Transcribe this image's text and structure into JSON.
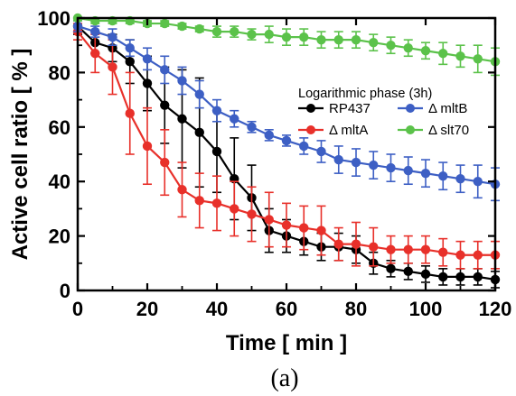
{
  "chart_data": {
    "type": "line",
    "title": "",
    "caption": "(a)",
    "xlabel": "Time [ min ]",
    "ylabel": "Active cell ratio [ % ]",
    "xlim": [
      0,
      120
    ],
    "ylim": [
      0,
      100
    ],
    "xticks": [
      "0",
      "20",
      "40",
      "60",
      "80",
      "100",
      "120"
    ],
    "yticks": [
      "0",
      "20",
      "40",
      "60",
      "80",
      "100"
    ],
    "grid": false,
    "legend_title": "Logarithmic phase (3h)",
    "legend_placement": "center-right",
    "x": [
      0,
      5,
      10,
      15,
      20,
      25,
      30,
      35,
      40,
      45,
      50,
      55,
      60,
      65,
      70,
      75,
      80,
      85,
      90,
      95,
      100,
      105,
      110,
      115,
      120
    ],
    "series": [
      {
        "name": "RP437",
        "color": "#000000",
        "values": [
          97,
          91,
          89,
          84,
          76,
          68,
          63,
          58,
          51,
          41,
          34,
          22,
          20,
          18,
          16,
          16,
          15,
          10,
          8,
          7,
          6,
          5,
          5,
          5,
          4
        ],
        "errors": [
          3,
          4,
          5,
          8,
          10,
          14,
          18,
          20,
          15,
          15,
          12,
          8,
          6,
          5,
          5,
          5,
          5,
          4,
          3,
          3,
          3,
          3,
          3,
          3,
          3
        ]
      },
      {
        "name": "Δ mltA",
        "color": "#e8302a",
        "values": [
          95,
          87,
          82,
          65,
          53,
          47,
          37,
          33,
          32,
          30,
          28,
          26,
          24,
          23,
          22,
          17,
          17,
          16,
          15,
          15,
          15,
          14,
          13,
          13,
          13
        ],
        "errors": [
          3,
          7,
          10,
          15,
          14,
          12,
          10,
          10,
          10,
          10,
          10,
          10,
          8,
          8,
          9,
          6,
          8,
          7,
          5,
          5,
          5,
          5,
          5,
          5,
          5
        ]
      },
      {
        "name": "Δ mltB",
        "color": "#3d5fc4",
        "values": [
          97,
          95,
          93,
          89,
          85,
          81,
          77,
          72,
          66,
          63,
          60,
          57,
          55,
          53,
          51,
          48,
          47,
          46,
          45,
          44,
          43,
          42,
          41,
          40,
          39
        ],
        "errors": [
          2,
          2,
          3,
          3,
          4,
          5,
          5,
          5,
          4,
          3,
          2,
          2,
          2,
          3,
          4,
          5,
          5,
          5,
          5,
          5,
          5,
          5,
          5,
          6,
          6
        ]
      },
      {
        "name": "Δ slt70",
        "color": "#5bc24a",
        "values": [
          100,
          99,
          99,
          99,
          98,
          98,
          97,
          96,
          95,
          95,
          94,
          94,
          93,
          93,
          92,
          92,
          92,
          91,
          90,
          89,
          88,
          87,
          86,
          85,
          84
        ],
        "errors": [
          1,
          1,
          1,
          1,
          1,
          1,
          1,
          1,
          2,
          2,
          2,
          3,
          3,
          3,
          3,
          3,
          3,
          3,
          3,
          3,
          3,
          4,
          4,
          5,
          5
        ]
      }
    ]
  }
}
